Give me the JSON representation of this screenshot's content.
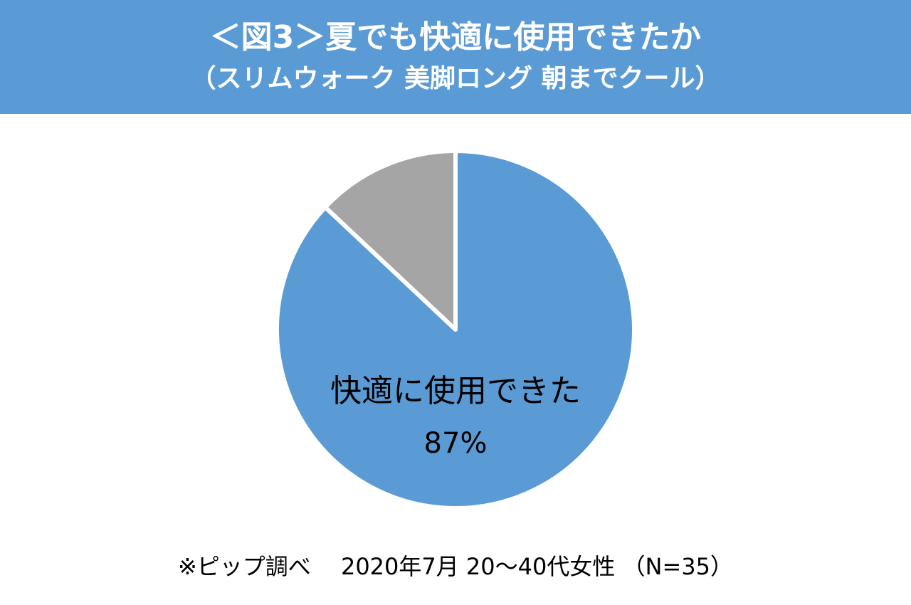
{
  "chart_data": {
    "type": "pie",
    "title": "＜図3＞夏でも快適に使用できたか",
    "subtitle": "（スリムウォーク 美脚ロング 朝までクール）",
    "categories": [
      "快適に使用できた",
      null
    ],
    "values": [
      87,
      13
    ],
    "value_labels": [
      "87%",
      null
    ],
    "colors": [
      "#5b9bd5",
      "#a5a5a5"
    ],
    "note": "※ピップ調べ　 2020年7月 20～40代女性 （N=35）"
  }
}
